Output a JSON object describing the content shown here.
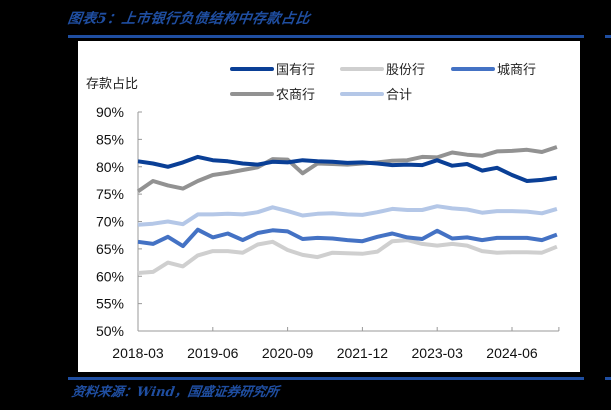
{
  "header": {
    "title": "图表5：上市银行负债结构中存款占比"
  },
  "footer": {
    "source": "资料来源：Wind，国盛证券研究所"
  },
  "colors": {
    "accent": "#1f4ea1",
    "background": "#000000",
    "panel": "#ffffff"
  },
  "chart_data": {
    "type": "line",
    "title": "上市银行负债结构中存款占比",
    "xlabel": "",
    "ylabel": "存款占比",
    "ylim": [
      0.5,
      0.9
    ],
    "yticks": [
      "90%",
      "85%",
      "80%",
      "75%",
      "70%",
      "65%",
      "60%",
      "55%",
      "50%"
    ],
    "xtick_labels": [
      "2018-03",
      "2019-06",
      "2020-09",
      "2021-12",
      "2023-03",
      "2024-06"
    ],
    "grid": false,
    "legend_position": "top",
    "x": [
      "2018-03",
      "2018-06",
      "2018-09",
      "2018-12",
      "2019-03",
      "2019-06",
      "2019-09",
      "2019-12",
      "2020-03",
      "2020-06",
      "2020-09",
      "2020-12",
      "2021-03",
      "2021-06",
      "2021-09",
      "2021-12",
      "2022-03",
      "2022-06",
      "2022-09",
      "2022-12",
      "2023-03",
      "2023-06",
      "2023-09",
      "2023-12",
      "2024-03",
      "2024-06",
      "2024-09",
      "2024-12",
      "2025-03"
    ],
    "series": [
      {
        "name": "国有行",
        "color": "#0a3f96",
        "values": [
          81.0,
          80.6,
          80.0,
          80.8,
          81.8,
          81.2,
          81.0,
          80.6,
          80.4,
          80.9,
          80.8,
          81.2,
          81.0,
          80.9,
          80.7,
          80.8,
          80.6,
          80.3,
          80.4,
          80.3,
          81.2,
          80.2,
          80.5,
          79.3,
          79.8,
          78.5,
          77.4,
          77.6,
          78.0
        ]
      },
      {
        "name": "股份行",
        "color": "#cfcfcf",
        "values": [
          60.6,
          60.8,
          62.5,
          61.8,
          63.8,
          64.6,
          64.6,
          64.3,
          65.8,
          66.3,
          64.8,
          63.9,
          63.5,
          64.3,
          64.2,
          64.1,
          64.5,
          66.4,
          66.6,
          65.9,
          65.6,
          65.9,
          65.6,
          64.6,
          64.3,
          64.4,
          64.4,
          64.3,
          65.4
        ]
      },
      {
        "name": "城商行",
        "color": "#4472c4",
        "values": [
          66.3,
          65.9,
          67.2,
          65.5,
          68.5,
          67.1,
          67.8,
          66.6,
          67.9,
          68.4,
          68.2,
          66.8,
          67.0,
          66.9,
          66.6,
          66.4,
          67.2,
          67.8,
          67.1,
          66.8,
          68.3,
          66.9,
          67.1,
          66.6,
          67.0,
          67.0,
          67.0,
          66.6,
          67.6
        ]
      },
      {
        "name": "农商行",
        "color": "#929292",
        "values": [
          75.5,
          77.4,
          76.6,
          76.0,
          77.4,
          78.5,
          78.9,
          79.4,
          79.9,
          81.4,
          81.3,
          78.8,
          80.6,
          80.5,
          80.4,
          80.6,
          80.8,
          81.1,
          81.2,
          81.8,
          81.7,
          82.6,
          82.2,
          82.0,
          82.8,
          82.9,
          83.1,
          82.7,
          83.6
        ]
      },
      {
        "name": "合计",
        "color": "#b4c7e7",
        "values": [
          69.4,
          69.6,
          70.0,
          69.5,
          71.3,
          71.3,
          71.4,
          71.3,
          71.7,
          72.6,
          71.9,
          71.1,
          71.4,
          71.5,
          71.3,
          71.2,
          71.7,
          72.3,
          72.1,
          72.1,
          72.8,
          72.4,
          72.2,
          71.6,
          71.9,
          71.9,
          71.8,
          71.5,
          72.3
        ]
      }
    ]
  },
  "legend": {
    "items": [
      {
        "label": "国有行",
        "color": "#0a3f96"
      },
      {
        "label": "股份行",
        "color": "#cfcfcf"
      },
      {
        "label": "城商行",
        "color": "#4472c4"
      },
      {
        "label": "农商行",
        "color": "#929292"
      },
      {
        "label": "合计",
        "color": "#b4c7e7"
      }
    ]
  }
}
